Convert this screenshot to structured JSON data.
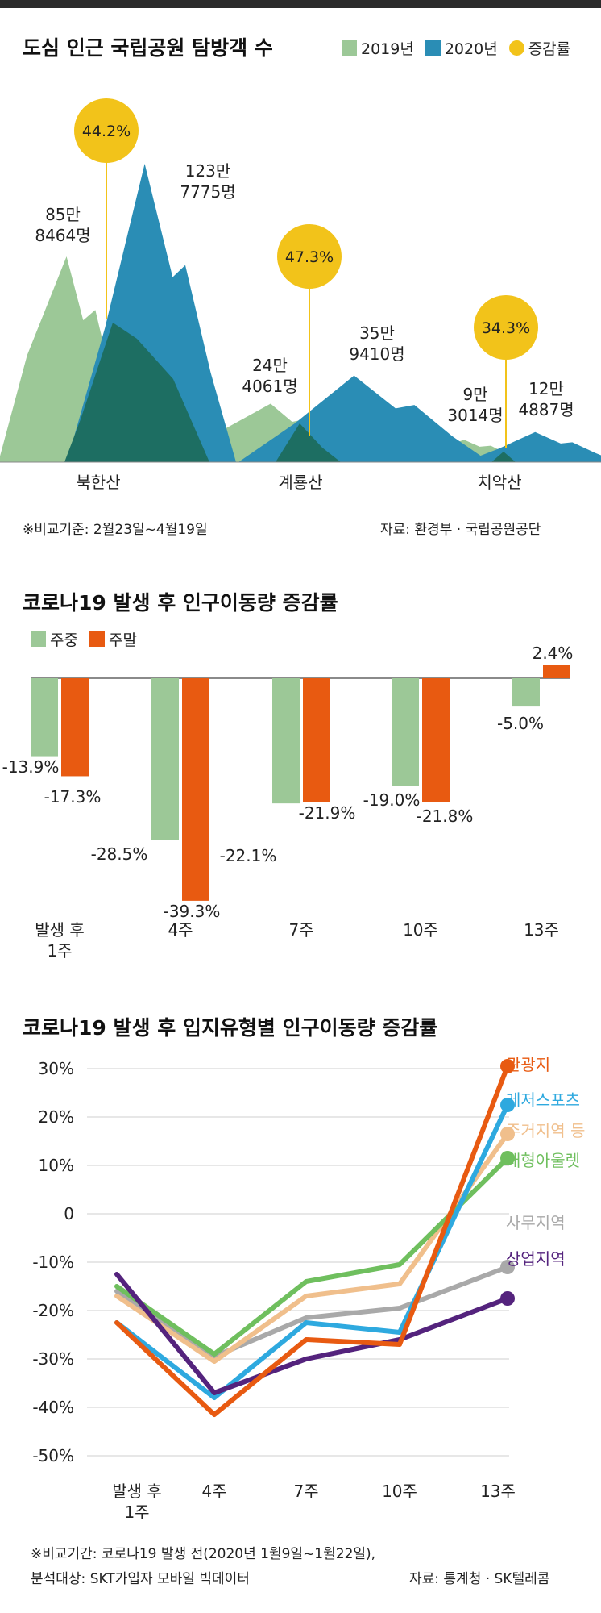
{
  "chart_data": [
    {
      "type": "area",
      "title": "도심 인근 국립공원 탐방객 수",
      "legend": [
        "2019년",
        "2020년",
        "증감률"
      ],
      "legend_position": "top-right",
      "categories": [
        "북한산",
        "계룡산",
        "치악산"
      ],
      "series": [
        {
          "name": "2019년",
          "labels": [
            "85만\n8464명",
            "24만\n4061명",
            "9만\n3014명"
          ],
          "values": [
            858464,
            244061,
            93014
          ],
          "color": "#9cc897"
        },
        {
          "name": "2020년",
          "labels": [
            "123만\n7775명",
            "35만\n9410명",
            "12만\n4887명"
          ],
          "values": [
            1237775,
            359410,
            124887
          ],
          "color": "#2a8db5"
        }
      ],
      "change": {
        "name": "증감률",
        "labels": [
          "44.2%",
          "47.3%",
          "34.3%"
        ],
        "values": [
          44.2,
          47.3,
          34.3
        ],
        "color": "#f2c31a"
      },
      "overlap_color": "#1d6e62",
      "footnote": "※비교기준: 2월23일~4월19일",
      "source": "자료: 환경부 · 국립공원공단"
    },
    {
      "type": "bar",
      "title": "코로나19 발생 후 인구이동량 증감률",
      "legend": [
        "주중",
        "주말"
      ],
      "legend_position": "top-left",
      "categories": [
        "발생 후\n1주",
        "4주",
        "7주",
        "10주",
        "13주"
      ],
      "series": [
        {
          "name": "주중",
          "values": [
            -13.9,
            -28.5,
            -22.1,
            -19.0,
            -5.0
          ],
          "labels": [
            "-13.9%",
            "-28.5%",
            "-22.1%",
            "-19.0%",
            "-5.0%"
          ],
          "color": "#9cc897"
        },
        {
          "name": "주말",
          "values": [
            -17.3,
            -39.3,
            -21.9,
            -21.8,
            2.4
          ],
          "labels": [
            "-17.3%",
            "-39.3%",
            "-21.9%",
            "-21.8%",
            "2.4%"
          ],
          "color": "#e85a11"
        }
      ]
    },
    {
      "type": "line",
      "title": "코로나19 발생 후 입지유형별 인구이동량 증감률",
      "categories": [
        "발생 후\n1주",
        "4주",
        "7주",
        "10주",
        "13주"
      ],
      "ylim": [
        -50,
        30
      ],
      "yticks": [
        "30%",
        "20%",
        "10%",
        "0",
        "-10%",
        "-20%",
        "-30%",
        "-40%",
        "-50%"
      ],
      "ytick_values": [
        30,
        20,
        10,
        0,
        -10,
        -20,
        -30,
        -40,
        -50
      ],
      "grid": true,
      "series": [
        {
          "name": "관광지",
          "values": [
            -22.5,
            -41.5,
            -26,
            -27,
            30.5
          ],
          "color": "#e85a11"
        },
        {
          "name": "레저스포츠",
          "values": [
            -22.5,
            -38,
            -22.5,
            -24.5,
            22.5
          ],
          "color": "#2ea9df"
        },
        {
          "name": "주거지역 등",
          "values": [
            -17,
            -30.5,
            -17,
            -14.5,
            16.5
          ],
          "color": "#f0bf8c"
        },
        {
          "name": "대형아울렛",
          "values": [
            -15,
            -29,
            -14,
            -10.5,
            11.5
          ],
          "color": "#6fbf5e"
        },
        {
          "name": "사무지역",
          "values": [
            -16,
            -29.5,
            -21.5,
            -19.5,
            -11
          ],
          "color": "#a9a9a9"
        },
        {
          "name": "상업지역",
          "values": [
            -12.5,
            -37,
            -30,
            -26,
            -17.5
          ],
          "color": "#54237d"
        }
      ],
      "footnote1": "※비교기간: 코로나19 발생 전(2020년 1월9일~1월22일),",
      "footnote2": "분석대상: SKT가입자 모바일 빅데이터",
      "source": "자료: 통계청 · SK텔레콤"
    }
  ]
}
